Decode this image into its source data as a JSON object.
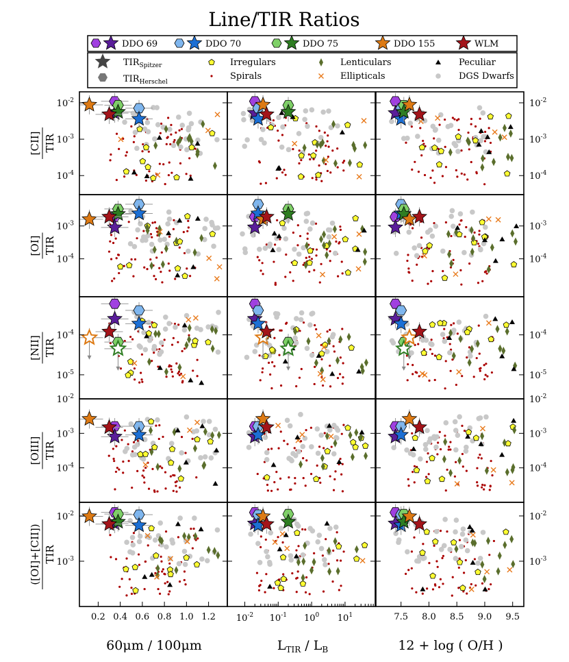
{
  "title": "Line/TIR Ratios",
  "colors": {
    "DDO 69": "#5a1e9a",
    "DDO 69 light": "#a040e0",
    "DDO 70": "#1c6fd4",
    "DDO 70 light": "#7fb6ee",
    "DDO 75": "#2e7d22",
    "DDO 75 light": "#7ed067",
    "DDO 155": "#dd7a14",
    "WLM": "#a3141a",
    "irregular": "#ffff33",
    "spiral": "#aa0000",
    "lenticular": "#5a6e2c",
    "elliptical": "#e87a1c",
    "peculiar": "#000000",
    "dgs": "#c8c8c8",
    "grey_star": "#444444",
    "grey_hex": "#777777"
  },
  "legend": {
    "galaxies": [
      "DDO 69",
      "DDO 70",
      "DDO 75",
      "DDO 155",
      "WLM"
    ],
    "tir_spitzer": "TIR",
    "tir_spitzer_sub": "Spitzer",
    "tir_herschel": "TIR",
    "tir_herschel_sub": "Herschel",
    "irregulars": "Irregulars",
    "spirals": "Spirals",
    "lenticulars": "Lenticulars",
    "ellipticals": "Ellipticals",
    "peculiar": "Peculiar",
    "dgs": "DGS Dwarfs"
  },
  "axes": {
    "xlabels": [
      "60μm / 100μm",
      "L",
      "12 + log ( O/H )"
    ],
    "xlabel2_sub": "TIR",
    "xlabel2_tail": " / L",
    "xlabel2_tail_sub": "B",
    "ylabels": [
      "[CII]",
      "[OI]",
      "[NII]",
      "[OIII]",
      "([OI]+[CII])"
    ],
    "ylabel_den": "TIR",
    "col0_ticks": [
      "0.2",
      "0.4",
      "0.6",
      "0.8",
      "1.0",
      "1.2"
    ],
    "col1_ticks": [
      "10",
      "10",
      "10",
      "10"
    ],
    "col1_exps": [
      "-2",
      "-1",
      "0",
      "1"
    ],
    "col2_ticks": [
      "7.5",
      "8.0",
      "8.5",
      "9.0",
      "9.5"
    ],
    "ytick_base": "10",
    "ytick_exps": [
      [
        "-2",
        "-3",
        "-4"
      ],
      [
        "-3",
        "-4"
      ],
      [
        "-4",
        "-5"
      ],
      [
        "-2",
        "-3",
        "-4"
      ],
      [
        "-2",
        "-3"
      ]
    ]
  },
  "chart_data": {
    "type": "scatter",
    "title": "Line/TIR Ratios",
    "x_axes": [
      {
        "label": "60μm / 100μm",
        "scale": "linear",
        "lim": [
          0.03,
          1.37
        ]
      },
      {
        "label": "L_TIR / L_B",
        "scale": "log",
        "lim": [
          0.003,
          80
        ]
      },
      {
        "label": "12 + log ( O/H )",
        "scale": "linear",
        "lim": [
          7.05,
          9.7
        ]
      }
    ],
    "y_axes": [
      {
        "label": "[CII]/TIR",
        "scale": "log",
        "lim": [
          3e-05,
          0.02
        ],
        "ticks": [
          0.01,
          0.001,
          0.0001
        ]
      },
      {
        "label": "[OI]/TIR",
        "scale": "log",
        "lim": [
          7e-06,
          0.009
        ],
        "ticks": [
          0.001,
          0.0001
        ]
      },
      {
        "label": "[NII]/TIR",
        "scale": "log",
        "lim": [
          2.5e-06,
          0.0009
        ],
        "ticks": [
          0.0001,
          1e-05
        ]
      },
      {
        "label": "[OIII]/TIR",
        "scale": "log",
        "lim": [
          1e-05,
          0.01
        ],
        "ticks": [
          0.01,
          0.001,
          0.0001
        ]
      },
      {
        "label": "([OI]+[CII])/TIR",
        "scale": "log",
        "lim": [
          0.0001,
          0.02
        ],
        "ticks": [
          0.01,
          0.001
        ]
      }
    ],
    "galaxies": [
      {
        "name": "DDO 69",
        "x": [
          0.35,
          0.02,
          7.4
        ],
        "spitzer": [
          0.0052,
          0.0009,
          0.00025,
          0.0008,
          0.0068
        ],
        "herschel": [
          0.011,
          0.0019,
          0.0006,
          0.0016,
          0.012
        ]
      },
      {
        "name": "DDO 70",
        "x": [
          0.57,
          0.025,
          7.5
        ],
        "spitzer": [
          0.0036,
          0.0024,
          0.00019,
          0.0009,
          0.0062
        ],
        "herschel": [
          0.0071,
          0.0046,
          0.00041,
          0.0016,
          0.0107
        ]
      },
      {
        "name": "DDO 75",
        "x": [
          0.38,
          0.2,
          7.55
        ],
        "spitzer": [
          0.0056,
          0.0023,
          4.5e-05,
          null,
          0.0074
        ],
        "herschel": [
          0.0086,
          0.0033,
          6.6e-05,
          null,
          0.011
        ]
      },
      {
        "name": "DDO 155",
        "x": [
          0.12,
          0.035,
          7.65
        ],
        "spitzer": [
          0.0088,
          0.0016,
          8.5e-05,
          0.0026,
          0.0098
        ],
        "herschel": [
          null,
          null,
          null,
          null,
          null
        ]
      },
      {
        "name": "WLM",
        "x": [
          0.3,
          0.045,
          7.83
        ],
        "spitzer": [
          0.0048,
          0.0019,
          0.00012,
          0.0015,
          0.0066
        ],
        "herschel": [
          null,
          null,
          null,
          null,
          null
        ]
      }
    ],
    "comparison_samples": [
      "Irregulars",
      "Spirals",
      "Lenticulars",
      "Ellipticals",
      "Peculiar",
      "DGS Dwarfs"
    ]
  }
}
